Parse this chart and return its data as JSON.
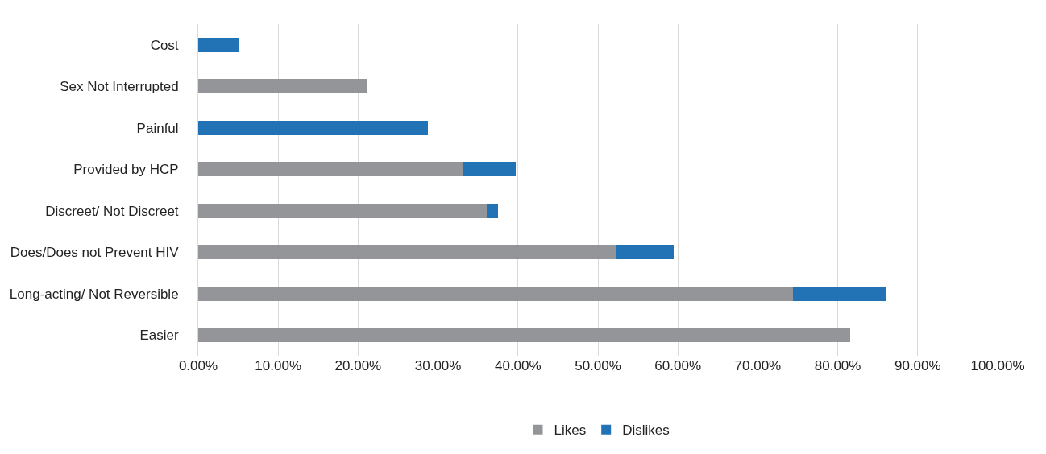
{
  "chart_data": {
    "type": "bar",
    "orientation": "horizontal",
    "stacked": true,
    "categories": [
      "Cost",
      "Sex Not Interrupted",
      "Painful",
      "Provided by HCP",
      "Discreet/ Not Discreet",
      "Does/Does not Prevent HIV",
      "Long-acting/ Not Reversible",
      "Easier"
    ],
    "series": [
      {
        "name": "Likes",
        "color": "#939598",
        "values": [
          null,
          21.2,
          null,
          33.1,
          36.1,
          52.3,
          74.4,
          81.6
        ]
      },
      {
        "name": "Dislikes",
        "color": "#2272b6",
        "values": [
          5.1,
          null,
          28.7,
          6.6,
          1.4,
          7.2,
          11.7,
          null
        ]
      }
    ],
    "xlim": [
      0,
      100
    ],
    "xticks": [
      {
        "value": 0,
        "label": "0.00%"
      },
      {
        "value": 10,
        "label": "10.00%"
      },
      {
        "value": 20,
        "label": "20.00%"
      },
      {
        "value": 30,
        "label": "30.00%"
      },
      {
        "value": 40,
        "label": "40.00%"
      },
      {
        "value": 50,
        "label": "50.00%"
      },
      {
        "value": 60,
        "label": "60.00%"
      },
      {
        "value": 70,
        "label": "70.00%"
      },
      {
        "value": 80,
        "label": "80.00%"
      },
      {
        "value": 90,
        "label": "90.00%"
      },
      {
        "value": 100,
        "label": "100.00%"
      }
    ],
    "grid": "x",
    "legend": "bottom"
  }
}
